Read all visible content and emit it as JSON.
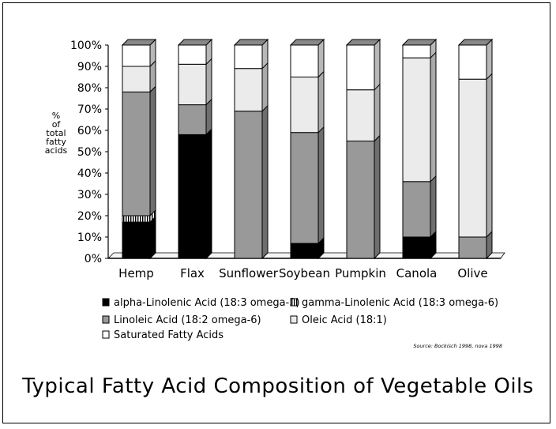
{
  "caption": "Typical Fatty Acid Composition of Vegetable Oils",
  "chart_data": {
    "type": "bar",
    "stacked": true,
    "y_axis_label_lines": [
      "%",
      "of",
      "total",
      "fatty",
      "acids"
    ],
    "y_ticks": [
      "0%",
      "10%",
      "20%",
      "30%",
      "40%",
      "50%",
      "60%",
      "70%",
      "80%",
      "90%",
      "100%"
    ],
    "ylim": [
      0,
      100
    ],
    "categories": [
      "Hemp",
      "Flax",
      "Sunflower",
      "Soybean",
      "Pumpkin",
      "Canola",
      "Olive"
    ],
    "series": [
      {
        "name": "alpha-Linolenic Acid (18:3 omega-3)",
        "key": "ala",
        "color": "#000000",
        "values": [
          17,
          58,
          0,
          7,
          0,
          10,
          0
        ]
      },
      {
        "name": "gamma-Linolenic Acid (18:3 omega-6)",
        "key": "gla",
        "color": "#ffffff",
        "pattern": "vertical-stripes",
        "values": [
          3,
          0,
          0,
          0,
          0,
          0,
          0
        ]
      },
      {
        "name": "Linoleic Acid (18:2 omega-6)",
        "key": "la",
        "color": "#999999",
        "values": [
          58,
          14,
          69,
          52,
          55,
          26,
          10
        ]
      },
      {
        "name": "Oleic Acid (18:1)",
        "key": "oleic",
        "color": "#ebebeb",
        "values": [
          12,
          19,
          20,
          26,
          24,
          58,
          74
        ]
      },
      {
        "name": "Saturated Fatty Acids",
        "key": "sat",
        "color": "#ffffff",
        "values": [
          10,
          9,
          11,
          15,
          21,
          6,
          16
        ]
      }
    ],
    "legend_order": [
      "ala",
      "gla",
      "la",
      "oleic",
      "sat"
    ],
    "source": "Source: Bockisch 1998, nova 1998"
  }
}
